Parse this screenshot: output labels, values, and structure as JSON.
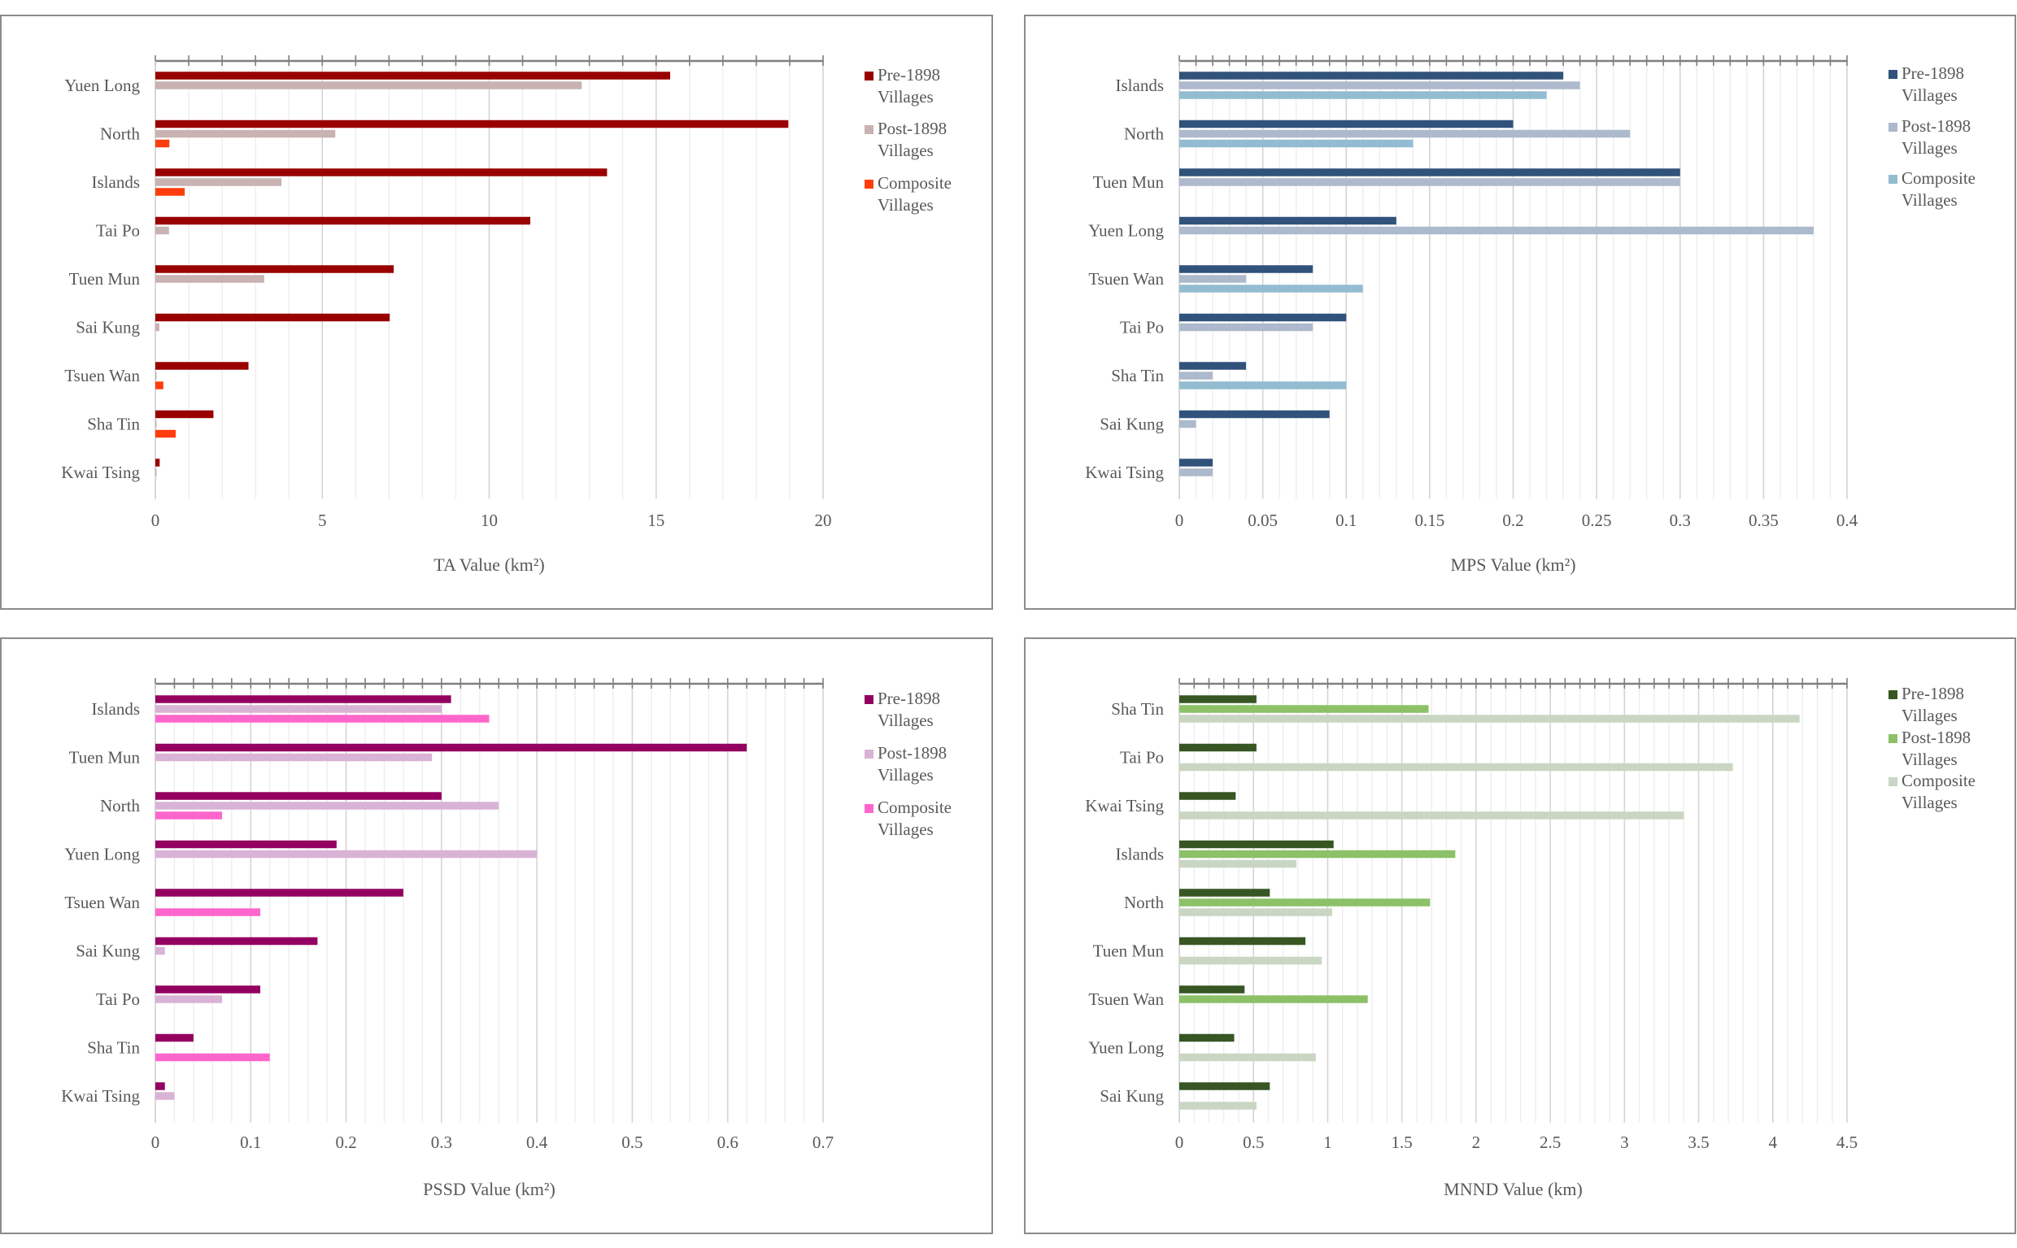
{
  "categories_note": "Horizontal clustered bar charts comparing village types across Hong Kong districts",
  "legend_labels": {
    "pre": [
      "Pre-1898",
      "Villages"
    ],
    "post": [
      "Post-1898",
      "Villages"
    ],
    "comp": [
      "Composite",
      "Villages"
    ]
  },
  "chart_data": [
    {
      "type": "bar",
      "orientation": "horizontal",
      "title": "",
      "xlabel": "TA Value (km²)",
      "ylabel": "",
      "xlim": [
        0,
        20
      ],
      "major_step": 5,
      "minor_step": 1,
      "tick_labels": [
        "0",
        "5",
        "10",
        "15",
        "20"
      ],
      "grid": true,
      "legend_position": "right",
      "categories": [
        "Yuen Long",
        "North",
        "Islands",
        "Tai Po",
        "Tuen Mun",
        "Sai Kung",
        "Tsuen Wan",
        "Sha Tin",
        "Kwai Tsing"
      ],
      "series": [
        {
          "key": "pre",
          "name": "Pre-1898 Villages",
          "color": "#990000",
          "values": [
            15.42,
            18.96,
            13.53,
            11.23,
            7.14,
            7.02,
            2.79,
            1.74,
            0.13
          ]
        },
        {
          "key": "post",
          "name": "Post-1898 Villages",
          "color": "#c9b2b2",
          "values": [
            12.77,
            5.39,
            3.78,
            0.41,
            3.26,
            0.12,
            0.02,
            0.02,
            0.02
          ]
        },
        {
          "key": "comp",
          "name": "Composite Villages",
          "color": "#ff3d0d",
          "values": [
            0,
            0.42,
            0.88,
            0,
            0,
            0,
            0.24,
            0.61,
            0
          ]
        }
      ]
    },
    {
      "type": "bar",
      "orientation": "horizontal",
      "title": "",
      "xlabel": "MPS Value (km²)",
      "ylabel": "",
      "xlim": [
        0,
        0.4
      ],
      "major_step": 0.05,
      "minor_step": 0.01,
      "tick_labels": [
        "0",
        "0.05",
        "0.1",
        "0.15",
        "0.2",
        "0.25",
        "0.3",
        "0.35",
        "0.4"
      ],
      "grid": true,
      "legend_position": "right",
      "categories": [
        "Islands",
        "North",
        "Tuen Mun",
        "Yuen Long",
        "Tsuen Wan",
        "Tai Po",
        "Sha Tin",
        "Sai Kung",
        "Kwai Tsing"
      ],
      "series": [
        {
          "key": "pre",
          "name": "Pre-1898 Villages",
          "color": "#30527b",
          "values": [
            0.23,
            0.2,
            0.3,
            0.13,
            0.08,
            0.1,
            0.04,
            0.09,
            0.02
          ]
        },
        {
          "key": "post",
          "name": "Post-1898 Villages",
          "color": "#adb9cc",
          "values": [
            0.24,
            0.27,
            0.3,
            0.38,
            0.04,
            0.08,
            0.02,
            0.01,
            0.02
          ]
        },
        {
          "key": "comp",
          "name": "Composite Villages",
          "color": "#93bcd1",
          "values": [
            0.22,
            0.14,
            0,
            0,
            0.11,
            0,
            0.1,
            0,
            0
          ]
        }
      ]
    },
    {
      "type": "bar",
      "orientation": "horizontal",
      "title": "",
      "xlabel": "PSSD Value (km²)",
      "ylabel": "",
      "xlim": [
        0,
        0.7
      ],
      "major_step": 0.1,
      "minor_step": 0.02,
      "tick_labels": [
        "0",
        "0.1",
        "0.2",
        "0.3",
        "0.4",
        "0.5",
        "0.6",
        "0.7"
      ],
      "grid": true,
      "legend_position": "right",
      "categories": [
        "Islands",
        "Tuen Mun",
        "North",
        "Yuen Long",
        "Tsuen Wan",
        "Sai Kung",
        "Tai Po",
        "Sha Tin",
        "Kwai Tsing"
      ],
      "series": [
        {
          "key": "pre",
          "name": "Pre-1898 Villages",
          "color": "#940060",
          "values": [
            0.31,
            0.62,
            0.3,
            0.19,
            0.26,
            0.17,
            0.11,
            0.04,
            0.01
          ]
        },
        {
          "key": "post",
          "name": "Post-1898 Villages",
          "color": "#d9b3d6",
          "values": [
            0.3,
            0.29,
            0.36,
            0.4,
            0,
            0.01,
            0.07,
            0,
            0.02
          ]
        },
        {
          "key": "comp",
          "name": "Composite Villages",
          "color": "#ff66cc",
          "values": [
            0.35,
            0,
            0.07,
            0,
            0.11,
            0,
            0,
            0.12,
            0
          ]
        }
      ]
    },
    {
      "type": "bar",
      "orientation": "horizontal",
      "title": "",
      "xlabel": "MNND Value (km)",
      "ylabel": "",
      "xlim": [
        0,
        4.5
      ],
      "major_step": 0.5,
      "minor_step": 0.1,
      "tick_labels": [
        "0",
        "0.5",
        "1",
        "1.5",
        "2",
        "2.5",
        "3",
        "3.5",
        "4",
        "4.5"
      ],
      "grid": true,
      "legend_position": "right",
      "categories": [
        "Sha Tin",
        "Tai Po",
        "Kwai Tsing",
        "Islands",
        "North",
        "Tuen Mun",
        "Tsuen Wan",
        "Yuen Long",
        "Sai Kung"
      ],
      "series": [
        {
          "key": "pre",
          "name": "Pre-1898 Villages",
          "color": "#375623",
          "values": [
            0.52,
            0.52,
            0.38,
            1.04,
            0.61,
            0.85,
            0.44,
            0.37,
            0.61
          ]
        },
        {
          "key": "post",
          "name": "Post-1898 Villages",
          "color": "#8cc168",
          "values": [
            1.68,
            0,
            0,
            1.86,
            1.69,
            0,
            1.27,
            0,
            0
          ]
        },
        {
          "key": "comp",
          "name": "Composite Villages",
          "color": "#c9d6c3",
          "values": [
            4.18,
            3.73,
            3.4,
            0.79,
            1.03,
            0.96,
            0,
            0.92,
            0.52
          ]
        }
      ]
    }
  ]
}
